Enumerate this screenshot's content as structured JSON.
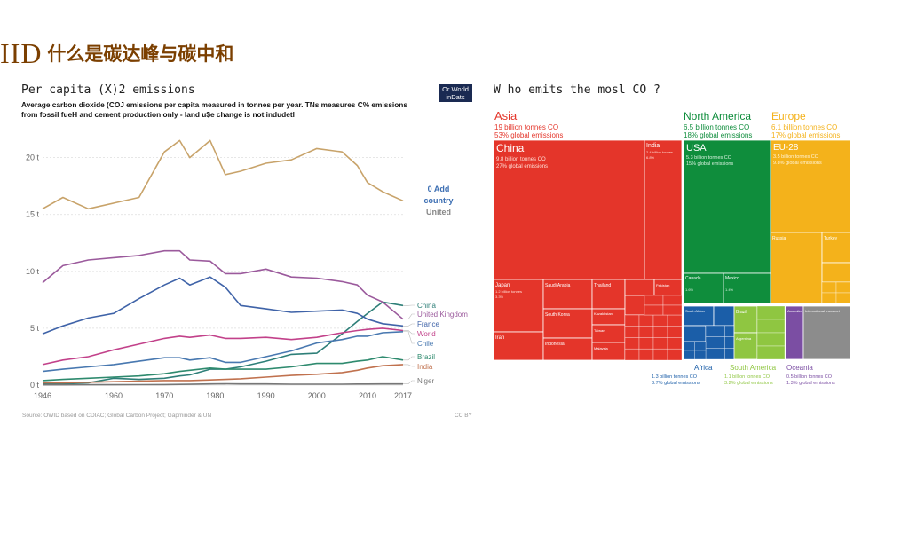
{
  "slide": {
    "number": "IID",
    "title": "什么是碳达峰与碳中和"
  },
  "left_chart": {
    "title": "Per capita (X)2 emissions",
    "subtitle": "Average carbon dioxide (COJ emissions per capita measured in tonnes per year. TNs measures C% emissions from fossil fueH and cement production only - land u$e change is not indudetl",
    "badge_line1": "Or World",
    "badge_line2": "inDats",
    "add_country_1": "0 Add",
    "add_country_2": "country",
    "add_country_3": "United",
    "source": "Source: OWID based on CDIAC; Global Carbon Project; Gapminder & UN",
    "license": "CC BY"
  },
  "right_chart": {
    "title": "W ho emits the mosl CO ?"
  },
  "colors": {
    "us": "#c8a36a",
    "china": "#2e7f78",
    "uk": "#9b5a9c",
    "france": "#3f63a8",
    "world": "#c2418a",
    "chile": "#4878b0",
    "brazil": "#2e8a6e",
    "india": "#c0714e",
    "niger": "#777777",
    "asia": "#e4352a",
    "namerica": "#0f8d3c",
    "europe": "#f4b21b",
    "africa": "#1b5ea8",
    "samerica": "#8fc641",
    "oceania": "#7b4ea3",
    "other": "#8c8c8c"
  },
  "chart_data": [
    {
      "type": "line",
      "title": "Per capita (X)2 emissions",
      "ylabel": "tonnes per year",
      "xlim": [
        1946,
        2017
      ],
      "ylim": [
        0,
        22
      ],
      "x_ticks": [
        "1946",
        "1960",
        "1970",
        "1980",
        "1990",
        "2000",
        "2010",
        "2017"
      ],
      "y_ticks": [
        {
          "v": 0,
          "label": "0 t"
        },
        {
          "v": 5,
          "label": "5 t"
        },
        {
          "v": 10,
          "label": "10 t"
        },
        {
          "v": 15,
          "label": "15 t"
        },
        {
          "v": 20,
          "label": "20 t"
        }
      ],
      "x": [
        1946,
        1950,
        1955,
        1960,
        1965,
        1970,
        1973,
        1975,
        1979,
        1982,
        1985,
        1990,
        1995,
        2000,
        2005,
        2008,
        2010,
        2013,
        2017
      ],
      "series": [
        {
          "name": "United States",
          "label": "",
          "color_key": "us",
          "values": [
            15.5,
            16.5,
            15.5,
            16.0,
            16.5,
            20.5,
            21.5,
            20.0,
            21.5,
            18.5,
            18.8,
            19.5,
            19.8,
            20.8,
            20.5,
            19.3,
            17.8,
            17.0,
            16.2
          ]
        },
        {
          "name": "China",
          "label": "China",
          "color_key": "china",
          "values": [
            0.1,
            0.1,
            0.2,
            0.6,
            0.5,
            0.6,
            0.8,
            0.9,
            1.4,
            1.4,
            1.6,
            2.1,
            2.7,
            2.8,
            4.5,
            5.6,
            6.3,
            7.3,
            7.0
          ]
        },
        {
          "name": "United Kingdom",
          "label": "United Kingdom",
          "color_key": "uk",
          "values": [
            9.0,
            10.5,
            11.0,
            11.2,
            11.4,
            11.8,
            11.8,
            11.0,
            10.9,
            9.8,
            9.8,
            10.2,
            9.5,
            9.4,
            9.1,
            8.8,
            7.9,
            7.3,
            5.8
          ]
        },
        {
          "name": "France",
          "label": "France",
          "color_key": "france",
          "values": [
            4.5,
            5.2,
            5.9,
            6.3,
            7.6,
            8.8,
            9.4,
            8.8,
            9.5,
            8.6,
            7.0,
            6.7,
            6.4,
            6.5,
            6.6,
            6.3,
            5.8,
            5.4,
            5.2
          ]
        },
        {
          "name": "World",
          "label": "World",
          "color_key": "world",
          "values": [
            1.8,
            2.2,
            2.5,
            3.1,
            3.6,
            4.1,
            4.3,
            4.2,
            4.4,
            4.1,
            4.1,
            4.2,
            4.0,
            4.2,
            4.6,
            4.8,
            4.9,
            5.0,
            4.8
          ]
        },
        {
          "name": "Chile",
          "label": "Chile",
          "color_key": "chile",
          "values": [
            1.2,
            1.4,
            1.6,
            1.8,
            2.1,
            2.4,
            2.4,
            2.2,
            2.4,
            2.0,
            2.0,
            2.5,
            3.0,
            3.7,
            4.0,
            4.3,
            4.3,
            4.6,
            4.7
          ]
        },
        {
          "name": "Brazil",
          "label": "Brazil",
          "color_key": "brazil",
          "values": [
            0.4,
            0.5,
            0.6,
            0.7,
            0.8,
            1.0,
            1.2,
            1.3,
            1.5,
            1.4,
            1.4,
            1.4,
            1.6,
            1.9,
            1.9,
            2.1,
            2.2,
            2.5,
            2.2
          ]
        },
        {
          "name": "India",
          "label": "India",
          "color_key": "india",
          "values": [
            0.2,
            0.2,
            0.25,
            0.3,
            0.35,
            0.4,
            0.4,
            0.4,
            0.45,
            0.5,
            0.55,
            0.7,
            0.85,
            0.95,
            1.1,
            1.3,
            1.5,
            1.7,
            1.8
          ]
        },
        {
          "name": "Niger",
          "label": "Niger",
          "color_key": "niger",
          "values": [
            0.02,
            0.02,
            0.03,
            0.03,
            0.04,
            0.05,
            0.06,
            0.07,
            0.1,
            0.12,
            0.1,
            0.1,
            0.08,
            0.08,
            0.08,
            0.09,
            0.09,
            0.1,
            0.1
          ]
        }
      ]
    },
    {
      "type": "treemap",
      "title": "W ho emits the mosl CO ?",
      "units": "billion tonnes CO2",
      "regions": [
        {
          "name": "Asia",
          "value": 19,
          "line1": "19 billion tonnes CO",
          "line2": "53% global emissions",
          "color_key": "asia",
          "children": [
            {
              "name": "China",
              "value": 9.8,
              "line1": "9.8 billion tonnes CO",
              "line2": "27% global emissions"
            },
            {
              "name": "India",
              "value": 2.4,
              "line1": "2.4 billion tonnes",
              "line2": "6.8%"
            },
            {
              "name": "Japan",
              "value": 1.2,
              "line1": "1.2 billion tonnes",
              "line2": "3.3%"
            },
            {
              "name": "Saudi Arabia",
              "value": 0.6,
              "line1": "",
              "line2": ""
            },
            {
              "name": "South Korea",
              "value": 0.6,
              "line1": "",
              "line2": ""
            },
            {
              "name": "Iran",
              "value": 0.7,
              "line1": "",
              "line2": ""
            },
            {
              "name": "Indonesia",
              "value": 0.5,
              "line1": "",
              "line2": ""
            },
            {
              "name": "Thailand",
              "value": 0.33,
              "line1": "",
              "line2": ""
            },
            {
              "name": "Kazakhstan",
              "value": 0.3,
              "line1": "",
              "line2": ""
            },
            {
              "name": "Taiwan",
              "value": 0.28,
              "line1": "",
              "line2": ""
            },
            {
              "name": "Malaysia",
              "value": 0.25,
              "line1": "",
              "line2": ""
            },
            {
              "name": "Pakistan",
              "value": 0.2,
              "line1": "",
              "line2": ""
            },
            {
              "name": "Vietnam",
              "value": 0.2,
              "line1": "",
              "line2": ""
            },
            {
              "name": "Iraq",
              "value": 0.18,
              "line1": "",
              "line2": ""
            },
            {
              "name": "Other Asia",
              "value": 0.5,
              "line1": "",
              "line2": ""
            }
          ]
        },
        {
          "name": "North America",
          "value": 6.5,
          "line1": "6.5 billion tonnes CO",
          "line2": "18% global emissions",
          "color_key": "namerica",
          "children": [
            {
              "name": "USA",
              "value": 5.3,
              "line1": "5.3 billion tonnes CO",
              "line2": "15% global emissions"
            },
            {
              "name": "Canada",
              "value": 0.6,
              "line1": "",
              "line2": "1.6%"
            },
            {
              "name": "Mexico",
              "value": 0.5,
              "line1": "",
              "line2": "1.4%"
            }
          ]
        },
        {
          "name": "Europe",
          "value": 6.1,
          "line1": "6.1 billion tonnes CO",
          "line2": "17% global emissions",
          "color_key": "europe",
          "children": [
            {
              "name": "EU-28",
              "value": 3.5,
              "line1": "3.5 billion tonnes CO",
              "line2": "9.8% global emissions"
            },
            {
              "name": "Russia",
              "value": 1.7,
              "line1": "",
              "line2": ""
            },
            {
              "name": "Turkey",
              "value": 0.45,
              "line1": "",
              "line2": ""
            },
            {
              "name": "Ukraine",
              "value": 0.2,
              "line1": "",
              "line2": ""
            }
          ]
        },
        {
          "name": "Africa",
          "value": 1.3,
          "line1": "1.3 billion tonnes CO",
          "line2": "3.7% global emissions",
          "color_key": "africa",
          "children": [
            {
              "name": "South Africa",
              "value": 0.45,
              "line1": "",
              "line2": ""
            },
            {
              "name": "Egypt",
              "value": 0.25,
              "line1": "",
              "line2": ""
            },
            {
              "name": "Algeria",
              "value": 0.15,
              "line1": "",
              "line2": ""
            }
          ]
        },
        {
          "name": "South America",
          "value": 1.1,
          "line1": "1.1 billion tonnes CO",
          "line2": "3.2% global emissions",
          "color_key": "samerica",
          "children": [
            {
              "name": "Brazil",
              "value": 0.48,
              "line1": "",
              "line2": ""
            },
            {
              "name": "Argentina",
              "value": 0.2,
              "line1": "",
              "line2": ""
            }
          ]
        },
        {
          "name": "Oceania",
          "value": 0.5,
          "line1": "0.5 billion tonnes CO",
          "line2": "1.3% global emissions",
          "color_key": "oceania",
          "children": [
            {
              "name": "Australia",
              "value": 0.4,
              "line1": "",
              "line2": ""
            }
          ]
        },
        {
          "name": "International transport",
          "value": 1.2,
          "line1": "",
          "line2": "",
          "color_key": "other",
          "children": []
        }
      ]
    }
  ]
}
